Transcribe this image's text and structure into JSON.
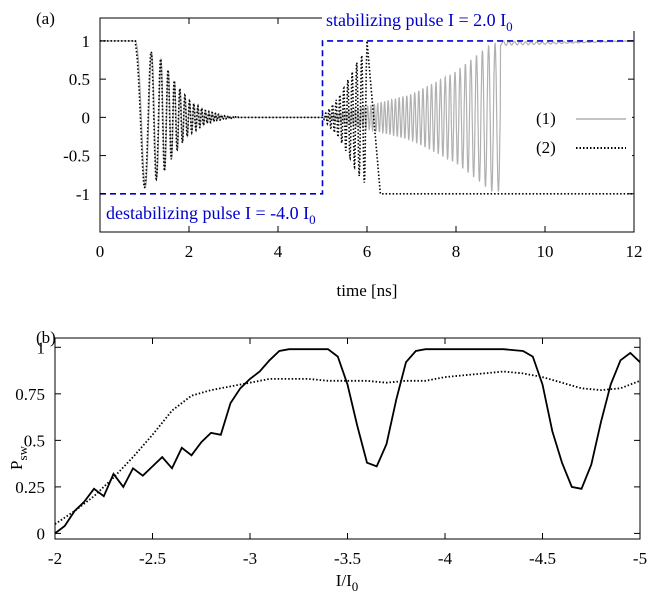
{
  "chart_data": [
    {
      "panel_label": "(a)",
      "type": "line",
      "xlabel": "time [ns]",
      "ylabel": "",
      "xlim": [
        0,
        12
      ],
      "ylim": [
        -1.5,
        1.3
      ],
      "xticks": [
        0,
        2,
        4,
        6,
        8,
        10,
        12
      ],
      "yticks": [
        1,
        0.5,
        0,
        -0.5,
        -1
      ],
      "xtick_labels": [
        "0",
        "2",
        "4",
        "6",
        "8",
        "10",
        "12"
      ],
      "ytick_labels": [
        "1",
        "0.5",
        "0",
        "-0.5",
        "-1"
      ],
      "grid": false,
      "legend_position": "right",
      "annotations": [
        {
          "text": "stabilizing pulse I = 2.0 I",
          "sub": "0",
          "color": "#0000cc"
        },
        {
          "text": "destabilizing pulse I = -4.0 I",
          "sub": "0",
          "color": "#0000cc"
        }
      ],
      "series": [
        {
          "name": "(1)",
          "color": "#b0b0b0",
          "style": "solid",
          "envelope": [
            [
              0,
              1
            ],
            [
              0.6,
              1
            ],
            [
              0.8,
              0.99
            ],
            [
              1.0,
              0.92
            ],
            [
              1.4,
              0.75
            ],
            [
              1.7,
              0.45
            ],
            [
              2.0,
              0.22
            ],
            [
              2.4,
              0.08
            ],
            [
              2.8,
              0.02
            ],
            [
              3.2,
              0.0
            ],
            [
              5.0,
              0.0
            ],
            [
              5.6,
              0.1
            ],
            [
              6.0,
              0.15
            ],
            [
              7.0,
              0.3
            ],
            [
              8.0,
              0.6
            ],
            [
              8.8,
              0.97
            ],
            [
              9.0,
              0.97
            ],
            [
              10.0,
              0.97
            ],
            [
              12.0,
              1.0
            ]
          ]
        },
        {
          "name": "(2)",
          "color": "#000000",
          "style": "dotted",
          "envelope": [
            [
              0,
              1
            ],
            [
              0.6,
              1
            ],
            [
              0.8,
              0.99
            ],
            [
              1.0,
              0.92
            ],
            [
              1.4,
              0.75
            ],
            [
              1.7,
              0.45
            ],
            [
              2.0,
              0.22
            ],
            [
              2.4,
              0.08
            ],
            [
              2.8,
              0.02
            ],
            [
              3.2,
              0.0
            ],
            [
              5.0,
              0.0
            ],
            [
              5.4,
              0.3
            ],
            [
              5.8,
              0.75
            ],
            [
              6.0,
              0.9
            ],
            [
              6.2,
              1.0
            ],
            [
              12.0,
              -1.0
            ]
          ]
        },
        {
          "name": "pulse",
          "color": "#0000cc",
          "style": "dashed",
          "x": [
            0,
            5,
            5,
            12
          ],
          "y": [
            -1,
            -1,
            1,
            1
          ]
        }
      ]
    },
    {
      "panel_label": "(b)",
      "type": "line",
      "xlabel": "I/I",
      "xlabel_sub": "0",
      "ylabel": "P",
      "ylabel_sub": "sw",
      "xlim": [
        -2,
        -5
      ],
      "ylim": [
        -0.03,
        1.05
      ],
      "xticks": [
        -2,
        -2.5,
        -3,
        -3.5,
        -4,
        -4.5,
        -5
      ],
      "yticks": [
        1,
        0.75,
        0.5,
        0.25,
        0
      ],
      "xtick_labels": [
        "-2",
        "-2.5",
        "-3",
        "-3.5",
        "-4",
        "-4.5",
        "-5"
      ],
      "ytick_labels": [
        "1",
        "0.75",
        "0.5",
        "0.25",
        "0"
      ],
      "grid": false,
      "series": [
        {
          "color": "#000000",
          "style": "solid",
          "x": [
            -2.0,
            -2.05,
            -2.1,
            -2.15,
            -2.2,
            -2.25,
            -2.3,
            -2.35,
            -2.4,
            -2.45,
            -2.5,
            -2.55,
            -2.6,
            -2.65,
            -2.7,
            -2.75,
            -2.8,
            -2.85,
            -2.9,
            -2.95,
            -3.0,
            -3.05,
            -3.1,
            -3.15,
            -3.2,
            -3.3,
            -3.4,
            -3.45,
            -3.5,
            -3.55,
            -3.6,
            -3.65,
            -3.7,
            -3.75,
            -3.8,
            -3.85,
            -3.9,
            -3.95,
            -4.0,
            -4.1,
            -4.2,
            -4.3,
            -4.4,
            -4.45,
            -4.5,
            -4.55,
            -4.6,
            -4.65,
            -4.7,
            -4.75,
            -4.8,
            -4.85,
            -4.9,
            -4.95,
            -5.0
          ],
          "y": [
            0.0,
            0.04,
            0.12,
            0.17,
            0.24,
            0.2,
            0.32,
            0.25,
            0.35,
            0.31,
            0.36,
            0.41,
            0.35,
            0.46,
            0.42,
            0.49,
            0.54,
            0.53,
            0.7,
            0.78,
            0.83,
            0.87,
            0.93,
            0.98,
            0.99,
            0.99,
            0.99,
            0.95,
            0.8,
            0.58,
            0.38,
            0.36,
            0.48,
            0.72,
            0.92,
            0.98,
            0.99,
            0.99,
            0.99,
            0.99,
            0.99,
            0.99,
            0.98,
            0.95,
            0.8,
            0.55,
            0.38,
            0.25,
            0.24,
            0.37,
            0.6,
            0.8,
            0.93,
            0.97,
            0.92
          ]
        },
        {
          "color": "#000000",
          "style": "dotted",
          "x": [
            -2.0,
            -2.1,
            -2.2,
            -2.3,
            -2.4,
            -2.5,
            -2.6,
            -2.7,
            -2.8,
            -2.9,
            -3.0,
            -3.1,
            -3.2,
            -3.3,
            -3.4,
            -3.5,
            -3.6,
            -3.7,
            -3.8,
            -3.9,
            -4.0,
            -4.1,
            -4.2,
            -4.3,
            -4.4,
            -4.5,
            -4.6,
            -4.7,
            -4.8,
            -4.9,
            -5.0
          ],
          "y": [
            0.05,
            0.12,
            0.2,
            0.3,
            0.41,
            0.53,
            0.66,
            0.74,
            0.77,
            0.79,
            0.81,
            0.83,
            0.83,
            0.83,
            0.82,
            0.82,
            0.82,
            0.81,
            0.82,
            0.82,
            0.84,
            0.85,
            0.86,
            0.87,
            0.86,
            0.84,
            0.81,
            0.78,
            0.77,
            0.78,
            0.82
          ]
        }
      ]
    }
  ]
}
